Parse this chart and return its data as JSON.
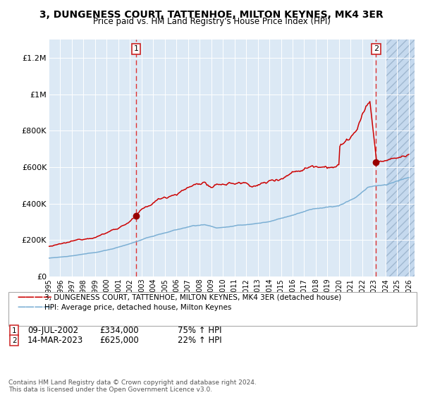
{
  "title": "3, DUNGENESS COURT, TATTENHOE, MILTON KEYNES, MK4 3ER",
  "subtitle": "Price paid vs. HM Land Registry's House Price Index (HPI)",
  "bg_color": "#dce9f5",
  "grid_color": "#ffffff",
  "red_line_color": "#cc0000",
  "blue_line_color": "#7bafd4",
  "marker_color": "#990000",
  "sale1_year": 2002.52,
  "sale1_price": 334000,
  "sale2_year": 2023.19,
  "sale2_price": 625000,
  "ylim": [
    0,
    1300000
  ],
  "xlim_start": 1995,
  "xlim_end": 2026.5,
  "yticks": [
    0,
    200000,
    400000,
    600000,
    800000,
    1000000,
    1200000
  ],
  "ytick_labels": [
    "£0",
    "£200K",
    "£400K",
    "£600K",
    "£800K",
    "£1M",
    "£1.2M"
  ],
  "xticks": [
    1995,
    1996,
    1997,
    1998,
    1999,
    2000,
    2001,
    2002,
    2003,
    2004,
    2005,
    2006,
    2007,
    2008,
    2009,
    2010,
    2011,
    2012,
    2013,
    2014,
    2015,
    2016,
    2017,
    2018,
    2019,
    2020,
    2021,
    2022,
    2023,
    2024,
    2025,
    2026
  ],
  "legend_label_red": "3, DUNGENESS COURT, TATTENHOE, MILTON KEYNES, MK4 3ER (detached house)",
  "legend_label_blue": "HPI: Average price, detached house, Milton Keynes",
  "annotation1_label": "1",
  "annotation1_date": "09-JUL-2002",
  "annotation1_price": "£334,000",
  "annotation1_hpi": "75% ↑ HPI",
  "annotation2_label": "2",
  "annotation2_date": "14-MAR-2023",
  "annotation2_price": "£625,000",
  "annotation2_hpi": "22% ↑ HPI",
  "footnote": "Contains HM Land Registry data © Crown copyright and database right 2024.\nThis data is licensed under the Open Government Licence v3.0.",
  "hatch_start": 2024.0,
  "title_fontsize": 10,
  "subtitle_fontsize": 8.5
}
